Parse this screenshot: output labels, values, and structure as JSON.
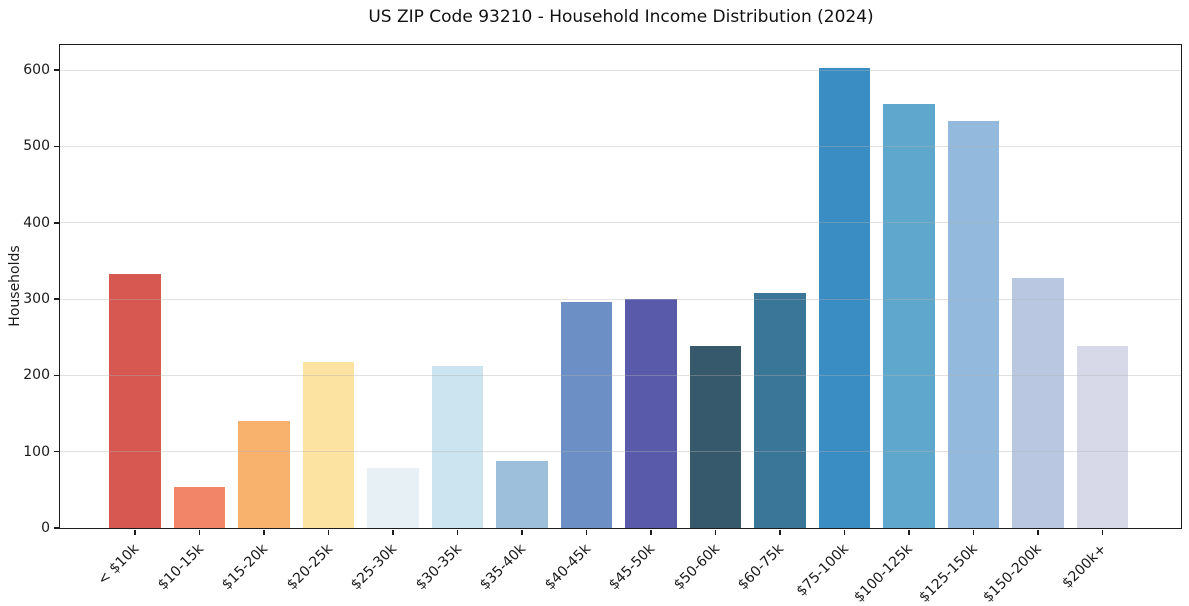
{
  "chart_data": {
    "type": "bar",
    "title": "US ZIP Code 93210 - Household Income Distribution (2024)",
    "xlabel": "",
    "ylabel": "Households",
    "categories": [
      "< $10k",
      "$10-15k",
      "$15-20k",
      "$20-25k",
      "$25-30k",
      "$30-35k",
      "$35-40k",
      "$40-45k",
      "$45-50k",
      "$50-60k",
      "$60-75k",
      "$75-100k",
      "$100-125k",
      "$125-150k",
      "$150-200k",
      "$200k+"
    ],
    "values": [
      333,
      54,
      140,
      218,
      79,
      212,
      88,
      296,
      300,
      238,
      308,
      603,
      556,
      534,
      328,
      238
    ],
    "bar_colors": [
      "#d65850",
      "#f28568",
      "#f9b26e",
      "#fce3a1",
      "#e7f1f5",
      "#cce4ef",
      "#9dbfdb",
      "#6c90c5",
      "#5a5aaa",
      "#37596c",
      "#3a7698",
      "#3a8dc3",
      "#60a7cd",
      "#93badc",
      "#b9c7e1",
      "#d8d9e8"
    ],
    "ylim": [
      0,
      633
    ],
    "yticks": [
      0,
      100,
      200,
      300,
      400,
      500,
      600
    ],
    "xlim": [
      -1.16,
      16.22
    ],
    "bar_width": 0.8,
    "x_tick_rotation": 45,
    "grid": "horizontal",
    "grid_above_bars": true,
    "grid_color": "#b0b0b0",
    "spine_color": "#1c1c1c",
    "text_color": "#1a1a1a",
    "background": "#ffffff",
    "legend": "none"
  }
}
